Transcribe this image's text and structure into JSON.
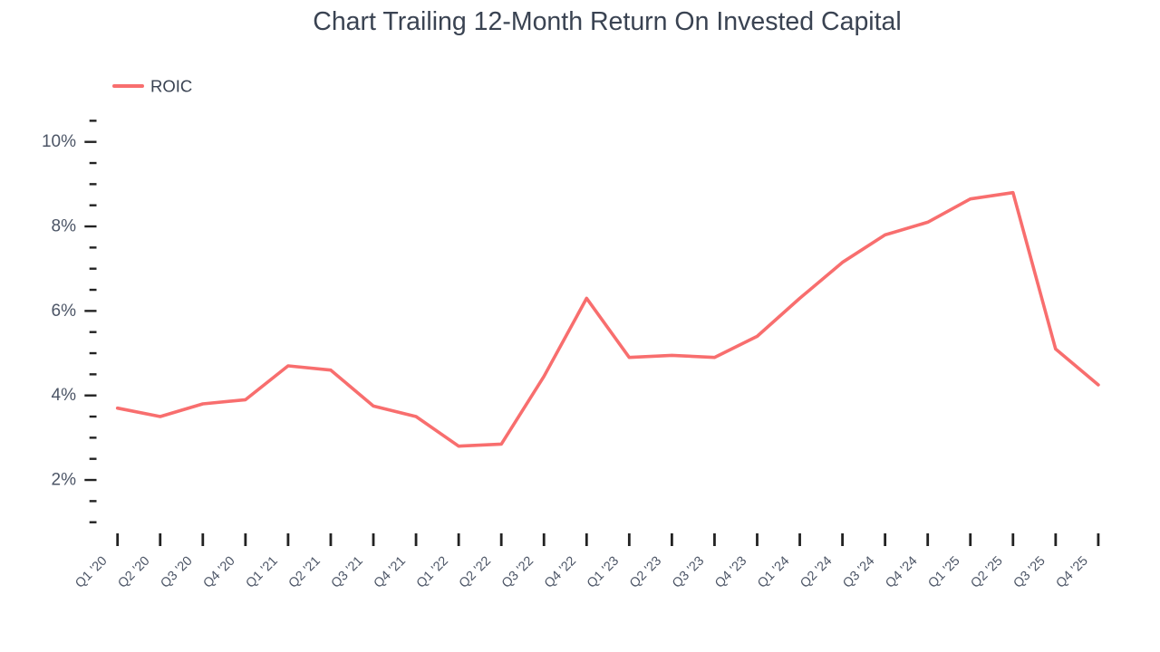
{
  "colors": {
    "background": "#FFFFFF",
    "title": "#3A4352",
    "axis_label": "#4C5566",
    "tick_mark": "#222222",
    "series_line": "#F86E6E"
  },
  "chart_data": {
    "type": "line",
    "title": "Chart Trailing 12-Month Return On Invested Capital",
    "xlabel": "",
    "ylabel": "",
    "grid": false,
    "legend": {
      "position": "top-left",
      "entries": [
        "ROIC"
      ]
    },
    "categories": [
      "Q1 '20",
      "Q2 '20",
      "Q3 '20",
      "Q4 '20",
      "Q1 '21",
      "Q2 '21",
      "Q3 '21",
      "Q4 '21",
      "Q1 '22",
      "Q2 '22",
      "Q3 '22",
      "Q4 '22",
      "Q1 '23",
      "Q2 '23",
      "Q3 '23",
      "Q4 '23",
      "Q1 '24",
      "Q2 '24",
      "Q3 '24",
      "Q4 '24",
      "Q1 '25",
      "Q2 '25",
      "Q3 '25",
      "Q4 '25"
    ],
    "series": [
      {
        "name": "ROIC",
        "color": "#F86E6E",
        "values": [
          3.7,
          3.5,
          3.8,
          3.9,
          4.7,
          4.6,
          3.75,
          3.5,
          2.8,
          2.85,
          4.45,
          6.3,
          4.9,
          4.95,
          4.9,
          5.4,
          6.3,
          7.15,
          7.8,
          8.1,
          8.65,
          8.8,
          5.1,
          4.25
        ]
      }
    ],
    "y_axis": {
      "min": 1.0,
      "max": 10.5,
      "minor_step": 0.5,
      "major_step": 2,
      "major_ticks": [
        2,
        4,
        6,
        8,
        10
      ],
      "tick_labels": [
        "2%",
        "4%",
        "6%",
        "8%",
        "10%"
      ],
      "label_suffix": "%"
    }
  }
}
